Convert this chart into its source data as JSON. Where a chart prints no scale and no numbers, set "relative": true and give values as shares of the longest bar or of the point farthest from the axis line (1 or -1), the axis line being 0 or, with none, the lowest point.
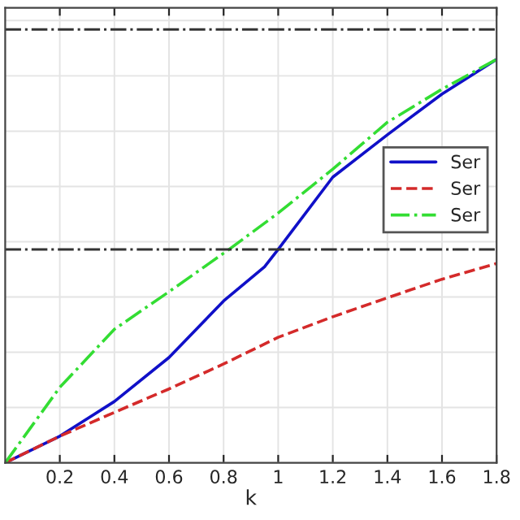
{
  "chart_data": {
    "type": "line",
    "xlabel": "k",
    "relative": true,
    "xlim": [
      0,
      1.8
    ],
    "xticks": [
      0.2,
      0.4,
      0.6,
      0.8,
      1,
      1.2,
      1.4,
      1.6,
      1.8
    ],
    "grid": true,
    "legend": "right",
    "series": [
      {
        "name": "Ser",
        "color": "#1010c8",
        "line_style": "solid",
        "x": [
          0,
          0.2,
          0.4,
          0.6,
          0.8,
          0.95,
          1.0,
          1.2,
          1.4,
          1.6,
          1.8
        ],
        "values": [
          0,
          0.066,
          0.152,
          0.261,
          0.401,
          0.486,
          0.529,
          0.708,
          0.813,
          0.914,
          1.0
        ]
      },
      {
        "name": "Ser",
        "color": "#d42a2a",
        "line_style": "dashed",
        "x": [
          0,
          0.2,
          0.4,
          0.6,
          0.8,
          1.0,
          1.2,
          1.4,
          1.6,
          1.8
        ],
        "values": [
          0,
          0.066,
          0.125,
          0.183,
          0.245,
          0.311,
          0.362,
          0.409,
          0.455,
          0.494
        ]
      },
      {
        "name": "Ser",
        "color": "#33dd33",
        "line_style": "dashdot",
        "x": [
          0,
          0.2,
          0.4,
          0.6,
          0.82,
          1.0,
          1.2,
          1.4,
          1.6,
          1.8
        ],
        "values": [
          0,
          0.187,
          0.331,
          0.424,
          0.529,
          0.619,
          0.728,
          0.844,
          0.926,
          1.0
        ]
      }
    ],
    "ref_lines": [
      {
        "axis": "y",
        "value": 1.074,
        "color": "#333333",
        "line_style": "dashdot"
      },
      {
        "axis": "y",
        "value": 0.529,
        "color": "#333333",
        "line_style": "dashdot"
      }
    ]
  }
}
